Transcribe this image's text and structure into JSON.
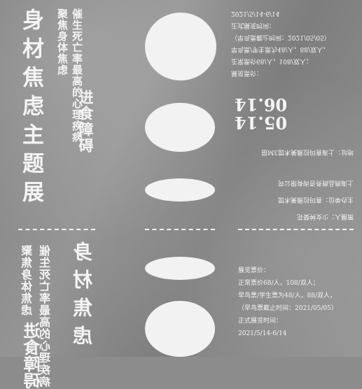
{
  "title_vertical": "身材焦虑主题展",
  "subtitle": {
    "line1": "聚焦身体焦虑",
    "line2": "催生死亡率最高的心理疾病",
    "line3": "进食障碍"
  },
  "mirrored": {
    "line1": "聚焦身体焦虑",
    "line2": "催生死亡率最高的心理疾病",
    "line3": "进食障碍",
    "title": "身材焦虑"
  },
  "upper_info": {
    "price_heading": "展览票价：",
    "price_normal": "正常票价68/人，108/双人；",
    "price_early": "早鸟票/学生票为48/人，88/双人，",
    "early_deadline": "（早鸟票截止时间：2021/05/05）",
    "time_heading": "正式展览时间：",
    "time_range": "2021/5/14-6/14"
  },
  "dates": {
    "start": "05.14",
    "end": "06.14"
  },
  "upper_org": {
    "curator": "策展人：少女种葵花",
    "host": "主办单位：喜玛拉雅美术馆",
    "cohost": "上海商品商务咨询有限公司",
    "address": "地址：上海喜玛拉雅美术馆3M层"
  },
  "lower_info": {
    "price_heading": "展览票价：",
    "price_normal": "正常票价68/人，108/双人；",
    "price_early": "早鸟票/学生票为48/人，88/双人，",
    "early_deadline": "（早鸟票截止时间：2021/05/05）",
    "time_heading": "正式展览时间：",
    "time_range": "2021/5/14-6/14"
  }
}
